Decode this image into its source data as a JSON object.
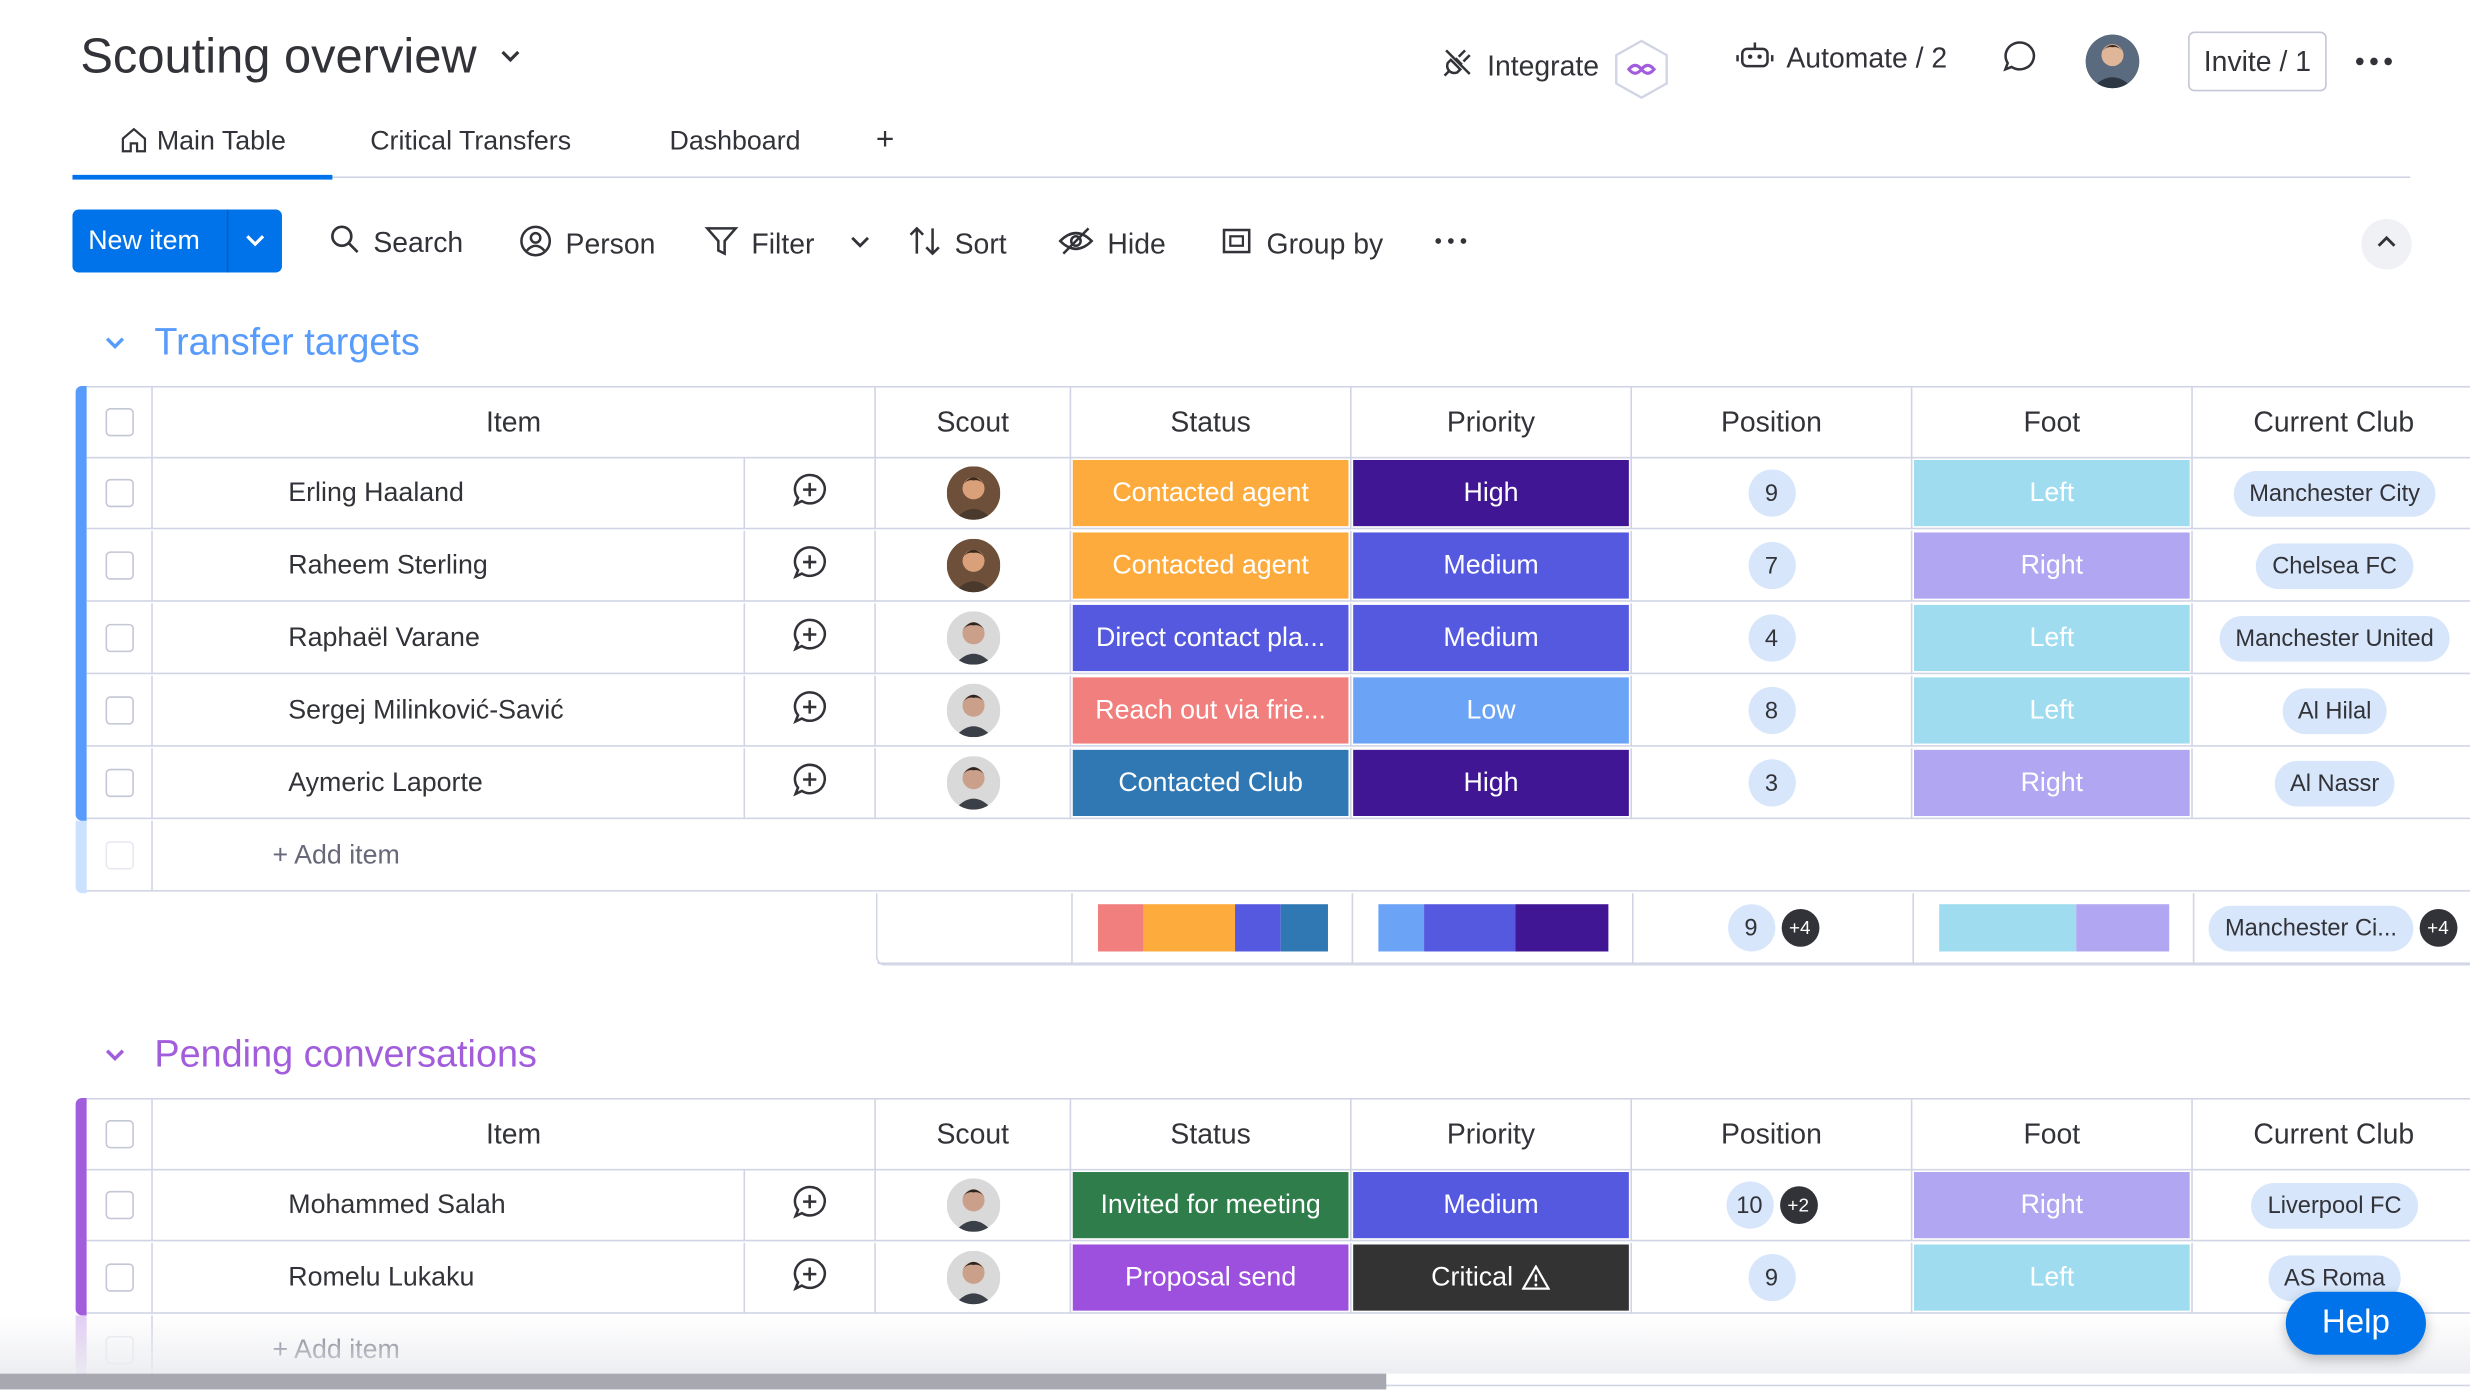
{
  "header": {
    "title": "Scouting overview",
    "integrate_label": "Integrate",
    "automate_label": "Automate / 2",
    "invite_label": "Invite / 1"
  },
  "tabs": [
    {
      "label": "Main Table",
      "active": true,
      "icon": "home-icon"
    },
    {
      "label": "Critical Transfers"
    },
    {
      "label": "Dashboard"
    },
    {
      "label": "+"
    }
  ],
  "toolbar": {
    "new_item_label": "New item",
    "search_label": "Search",
    "person_label": "Person",
    "filter_label": "Filter",
    "sort_label": "Sort",
    "hide_label": "Hide",
    "group_by_label": "Group by"
  },
  "columns": [
    "Item",
    "Scout",
    "Status",
    "Priority",
    "Position",
    "Foot",
    "Current Club"
  ],
  "colors": {
    "accent": "#0073ea",
    "group1": "#579bfc",
    "group2": "#a25ddc",
    "contacted_agent": "#fdab3d",
    "direct_contact": "#5559df",
    "reach_out": "#f17f7d",
    "contacted_club": "#3078b4",
    "invited": "#2e7d4a",
    "proposal": "#9d50dd",
    "prio_high": "#401694",
    "prio_medium": "#5559df",
    "prio_low": "#6ba3f6",
    "prio_critical": "#333333",
    "foot_left": "#9fdcef",
    "foot_right": "#b0a6f2"
  },
  "groups": [
    {
      "title": "Transfer targets",
      "rows": [
        {
          "name": "Erling Haaland",
          "status": "Contacted agent",
          "status_color": "#fdab3d",
          "priority": "High",
          "priority_color": "#401694",
          "position": "9",
          "position_extra": "",
          "foot": "Left",
          "foot_color": "#9fdcef",
          "club": "Manchester City"
        },
        {
          "name": "Raheem Sterling",
          "status": "Contacted agent",
          "status_color": "#fdab3d",
          "priority": "Medium",
          "priority_color": "#5559df",
          "position": "7",
          "position_extra": "",
          "foot": "Right",
          "foot_color": "#b0a6f2",
          "club": "Chelsea FC"
        },
        {
          "name": "Raphaël Varane",
          "status": "Direct contact pla...",
          "status_color": "#5559df",
          "priority": "Medium",
          "priority_color": "#5559df",
          "position": "4",
          "position_extra": "",
          "foot": "Left",
          "foot_color": "#9fdcef",
          "club": "Manchester United"
        },
        {
          "name": "Sergej Milinković-Savić",
          "status": "Reach out via frie...",
          "status_color": "#f17f7d",
          "priority": "Low",
          "priority_color": "#6ba3f6",
          "position": "8",
          "position_extra": "",
          "foot": "Left",
          "foot_color": "#9fdcef",
          "club": "Al Hilal"
        },
        {
          "name": "Aymeric Laporte",
          "status": "Contacted Club",
          "status_color": "#3078b4",
          "priority": "High",
          "priority_color": "#401694",
          "position": "3",
          "position_extra": "",
          "foot": "Right",
          "foot_color": "#b0a6f2",
          "club": "Al Nassr"
        }
      ],
      "add_item_label": "+ Add item",
      "summary": {
        "status_segments": [
          {
            "color": "#f17f7d",
            "share": 0.2
          },
          {
            "color": "#fdab3d",
            "share": 0.4
          },
          {
            "color": "#5559df",
            "share": 0.2
          },
          {
            "color": "#3078b4",
            "share": 0.2
          }
        ],
        "priority_segments": [
          {
            "color": "#6ba3f6",
            "share": 0.2
          },
          {
            "color": "#5559df",
            "share": 0.4
          },
          {
            "color": "#401694",
            "share": 0.4
          }
        ],
        "position_value": "9",
        "position_extra": "+4",
        "foot_segments": [
          {
            "color": "#9fdcef",
            "share": 0.6
          },
          {
            "color": "#b0a6f2",
            "share": 0.4
          }
        ],
        "club_value": "Manchester Ci...",
        "club_extra": "+4"
      }
    },
    {
      "title": "Pending conversations",
      "rows": [
        {
          "name": "Mohammed Salah",
          "status": "Invited for meeting",
          "status_color": "#2e7d4a",
          "priority": "Medium",
          "priority_color": "#5559df",
          "position": "10",
          "position_extra": "+2",
          "foot": "Right",
          "foot_color": "#b0a6f2",
          "club": "Liverpool FC"
        },
        {
          "name": "Romelu Lukaku",
          "status": "Proposal send",
          "status_color": "#9d50dd",
          "priority": "Critical",
          "priority_color": "#333333",
          "position": "9",
          "position_extra": "",
          "foot": "Left",
          "foot_color": "#9fdcef",
          "club": "AS Roma"
        }
      ],
      "add_item_label": "+ Add item"
    }
  ],
  "help_label": "Help"
}
